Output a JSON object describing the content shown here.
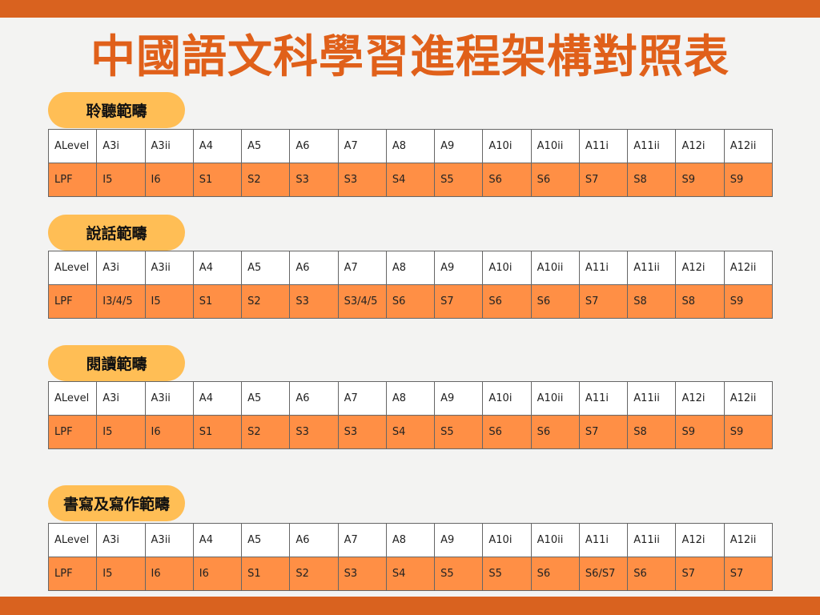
{
  "title": "中國語文科學習進程架構對照表",
  "colors": {
    "bar": "#d9621f",
    "title": "#e0601a",
    "pill": "#ffbe55",
    "value_row": "#ff8f45"
  },
  "sections": [
    {
      "label": "聆聽範疇",
      "header": [
        "ALevel",
        "A3i",
        "A3ii",
        "A4",
        "A5",
        "A6",
        "A7",
        "A8",
        "A9",
        "A10i",
        "A10ii",
        "A11i",
        "A11ii",
        "A12i",
        "A12ii"
      ],
      "values": [
        "LPF",
        "I5",
        "I6",
        "S1",
        "S2",
        "S3",
        "S3",
        "S4",
        "S5",
        "S6",
        "S6",
        "S7",
        "S8",
        "S9",
        "S9"
      ]
    },
    {
      "label": "說話範疇",
      "header": [
        "ALevel",
        "A3i",
        "A3ii",
        "A4",
        "A5",
        "A6",
        "A7",
        "A8",
        "A9",
        "A10i",
        "A10ii",
        "A11i",
        "A11ii",
        "A12i",
        "A12ii"
      ],
      "values": [
        "LPF",
        "I3/4/5",
        "I5",
        "S1",
        "S2",
        "S3",
        "S3/4/5",
        "S6",
        "S7",
        "S6",
        "S6",
        "S7",
        "S8",
        "S8",
        "S9"
      ]
    },
    {
      "label": "閱讀範疇",
      "header": [
        "ALevel",
        "A3i",
        "A3ii",
        "A4",
        "A5",
        "A6",
        "A7",
        "A8",
        "A9",
        "A10i",
        "A10ii",
        "A11i",
        "A11ii",
        "A12i",
        "A12ii"
      ],
      "values": [
        "LPF",
        "I5",
        "I6",
        "S1",
        "S2",
        "S3",
        "S3",
        "S4",
        "S5",
        "S6",
        "S6",
        "S7",
        "S8",
        "S9",
        "S9"
      ]
    },
    {
      "label": "書寫及寫作範疇",
      "header": [
        "ALevel",
        "A3i",
        "A3ii",
        "A4",
        "A5",
        "A6",
        "A7",
        "A8",
        "A9",
        "A10i",
        "A10ii",
        "A11i",
        "A11ii",
        "A12i",
        "A12ii"
      ],
      "values": [
        "LPF",
        "I5",
        "I6",
        "I6",
        "S1",
        "S2",
        "S3",
        "S4",
        "S5",
        "S5",
        "S6",
        "S6/S7",
        "S6",
        "S7",
        "S7"
      ]
    }
  ]
}
